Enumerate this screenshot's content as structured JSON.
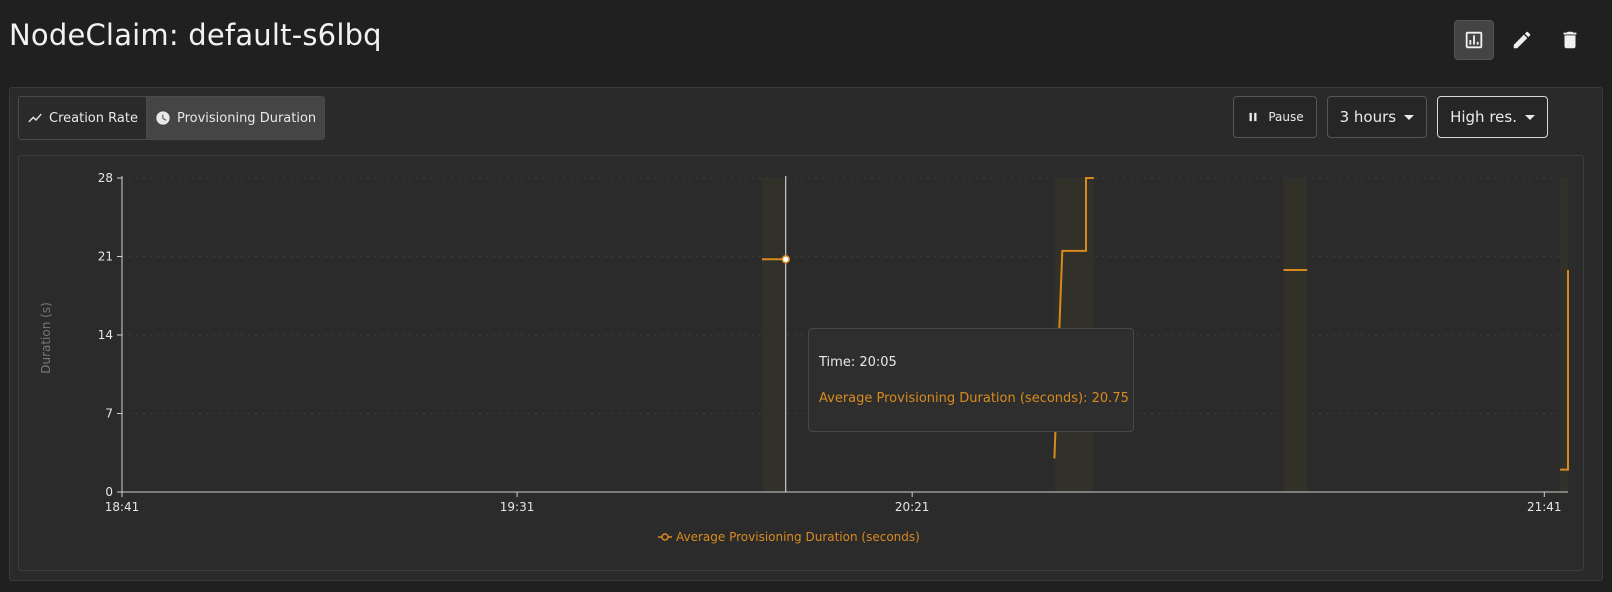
{
  "page": {
    "title": "NodeClaim: default-s6lbq"
  },
  "header_actions": [
    {
      "icon": "chart-icon",
      "active": true
    },
    {
      "icon": "pencil-icon",
      "active": false
    },
    {
      "icon": "trash-icon",
      "active": false
    }
  ],
  "tabs": [
    {
      "label": "Creation Rate",
      "icon": "trend-line-icon",
      "active": false
    },
    {
      "label": "Provisioning Duration",
      "icon": "clock-icon",
      "active": true
    }
  ],
  "controls": {
    "pause_label": "Pause",
    "range_label": "3 hours",
    "resolution_label": "High res."
  },
  "tooltip": {
    "time": "Time: 20:05",
    "value": "Average Provisioning Duration (seconds): 20.75"
  },
  "colors": {
    "series": "#d98a1e",
    "background": "#202020"
  },
  "chart_data": {
    "type": "line",
    "ylabel": "Duration (s)",
    "xlabel": "",
    "ylim": [
      0,
      28
    ],
    "yticks": [
      0,
      7,
      14,
      21,
      28
    ],
    "xticks": [
      "18:41",
      "19:31",
      "20:21",
      "21:41"
    ],
    "legend": "bottom",
    "grid": true,
    "series": [
      {
        "name": "Average Provisioning Duration (seconds)",
        "points": [
          {
            "x": "20:02",
            "y": 20.75
          },
          {
            "x": "20:05",
            "y": 20.75
          },
          {
            "x": "20:39",
            "y": 3
          },
          {
            "x": "20:40",
            "y": 21.5
          },
          {
            "x": "20:43",
            "y": 21.5
          },
          {
            "x": "20:43",
            "y": 28
          },
          {
            "x": "20:44",
            "y": 28
          },
          {
            "x": "21:08",
            "y": 19.8
          },
          {
            "x": "21:11",
            "y": 19.8
          },
          {
            "x": "21:43",
            "y": 2
          },
          {
            "x": "21:44",
            "y": 2
          },
          {
            "x": "21:44",
            "y": 19.8
          }
        ]
      }
    ],
    "hover": {
      "x": "20:05",
      "y": 20.75
    }
  }
}
